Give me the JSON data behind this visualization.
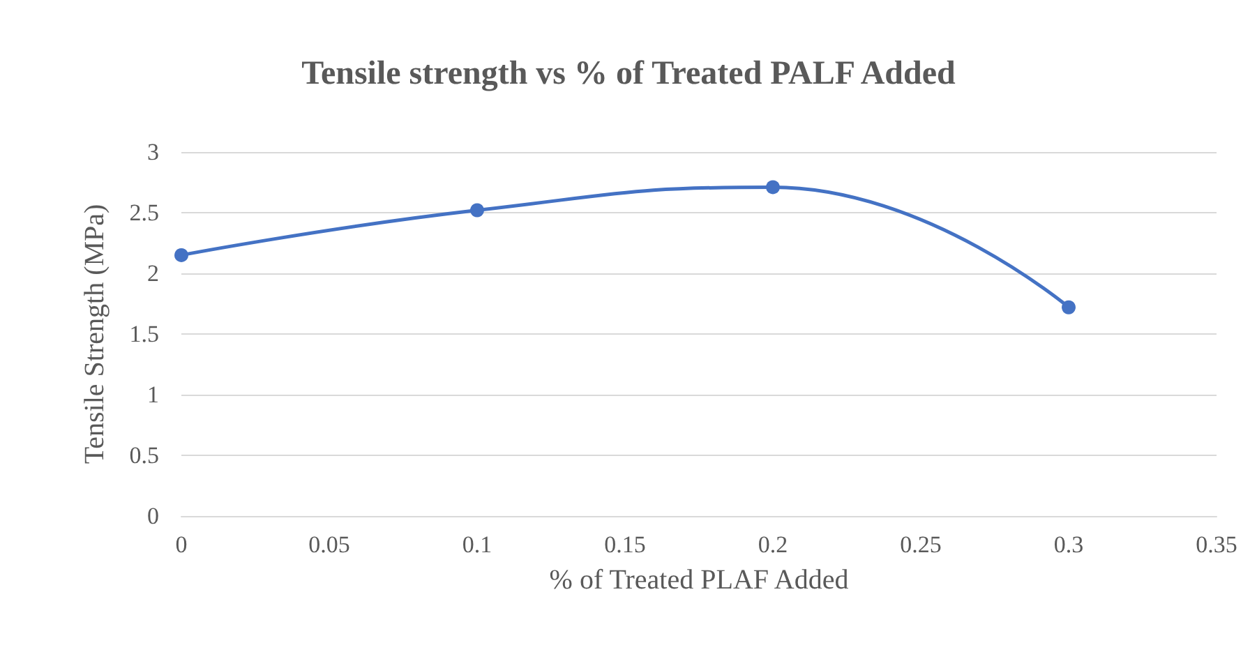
{
  "chart_data": {
    "type": "line",
    "title": "Tensile strength vs % of Treated PALF Added",
    "xlabel": "% of Treated PLAF Added",
    "ylabel": "Tensile Strength (MPa)",
    "x": [
      0,
      0.1,
      0.2,
      0.3
    ],
    "series": [
      {
        "color": "#4472c4",
        "values": [
          2.15,
          2.52,
          2.71,
          1.72
        ]
      }
    ],
    "xlim": [
      0,
      0.35
    ],
    "xticks": [
      0,
      0.05,
      0.1,
      0.15,
      0.2,
      0.25,
      0.3,
      0.35
    ],
    "ylim": [
      0,
      3
    ],
    "yticks": [
      0,
      0.5,
      1,
      1.5,
      2,
      2.5,
      3
    ],
    "grid": "y",
    "marker": "circle",
    "line_style": "solid"
  }
}
